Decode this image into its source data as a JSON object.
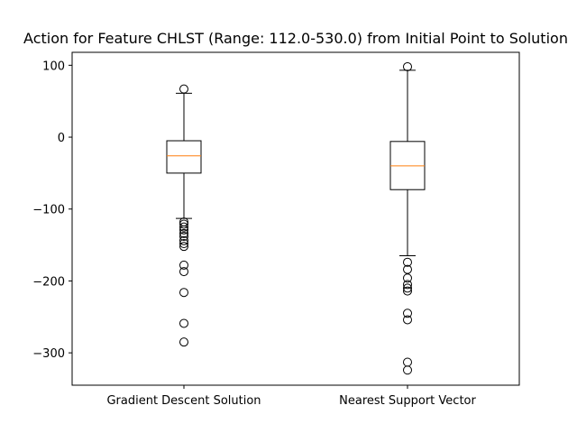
{
  "chart_data": {
    "type": "box",
    "title": "Action for Feature CHLST (Range: 112.0-530.0) from Initial Point to Solution",
    "xlabel": "",
    "ylabel": "",
    "ylim": [
      -345,
      118
    ],
    "yticks": [
      100,
      0,
      -100,
      -200,
      -300
    ],
    "ytick_labels": [
      "100",
      "0",
      "−100",
      "−200",
      "−300"
    ],
    "grid": false,
    "series": [
      {
        "name": "Gradient Descent Solution",
        "whisker_low": -113,
        "q1": -50,
        "median": -26,
        "q3": -5,
        "whisker_high": 61,
        "outliers": [
          67,
          -118,
          -121,
          -125,
          -129,
          -134,
          -138,
          -144,
          -148,
          -152,
          -178,
          -187,
          -216,
          -259,
          -285
        ]
      },
      {
        "name": "Nearest Support Vector",
        "whisker_low": -165,
        "q1": -73,
        "median": -40,
        "q3": -6,
        "whisker_high": 93,
        "outliers": [
          98,
          -174,
          -184,
          -196,
          -205,
          -210,
          -214,
          -245,
          -254,
          -313,
          -324
        ]
      }
    ],
    "colors": {
      "median": "#ff7f0e",
      "box": "#000000",
      "axes": "#000000"
    }
  }
}
